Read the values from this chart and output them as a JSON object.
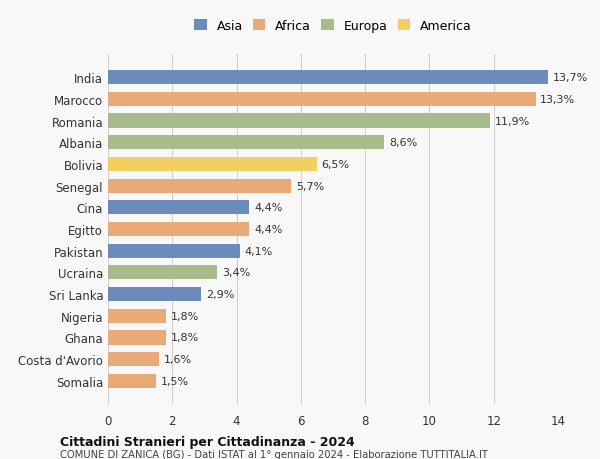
{
  "countries": [
    "India",
    "Marocco",
    "Romania",
    "Albania",
    "Bolivia",
    "Senegal",
    "Cina",
    "Egitto",
    "Pakistan",
    "Ucraina",
    "Sri Lanka",
    "Nigeria",
    "Ghana",
    "Costa d'Avorio",
    "Somalia"
  ],
  "values": [
    13.7,
    13.3,
    11.9,
    8.6,
    6.5,
    5.7,
    4.4,
    4.4,
    4.1,
    3.4,
    2.9,
    1.8,
    1.8,
    1.6,
    1.5
  ],
  "continents": [
    "Asia",
    "Africa",
    "Europa",
    "Europa",
    "America",
    "Africa",
    "Asia",
    "Africa",
    "Asia",
    "Europa",
    "Asia",
    "Africa",
    "Africa",
    "Africa",
    "Africa"
  ],
  "colors": {
    "Asia": "#6b8cba",
    "Africa": "#e8aa77",
    "Europa": "#a8bb8a",
    "America": "#f0d060"
  },
  "legend_order": [
    "Asia",
    "Africa",
    "Europa",
    "America"
  ],
  "title1": "Cittadini Stranieri per Cittadinanza - 2024",
  "title2": "COMUNE DI ZANICA (BG) - Dati ISTAT al 1° gennaio 2024 - Elaborazione TUTTITALIA.IT",
  "xlim": [
    0,
    14
  ],
  "xticks": [
    0,
    2,
    4,
    6,
    8,
    10,
    12,
    14
  ],
  "background_color": "#f8f8f8",
  "bar_height": 0.65
}
